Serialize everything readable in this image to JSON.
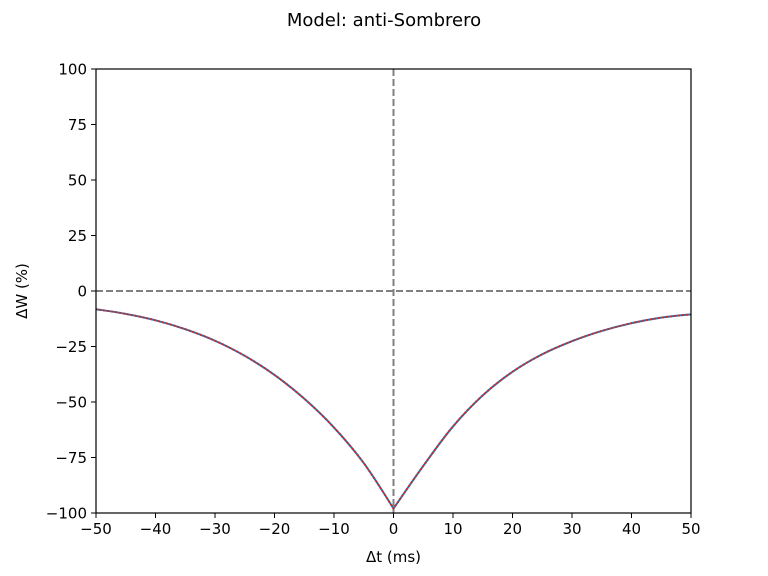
{
  "chart_data": {
    "type": "line",
    "title": "Model: anti-Sombrero",
    "xlabel": "Δt (ms)",
    "ylabel": "ΔW (%)",
    "xlim": [
      -50,
      50
    ],
    "ylim": [
      -100,
      100
    ],
    "xticks": [
      -50,
      -40,
      -30,
      -20,
      -10,
      0,
      10,
      20,
      30,
      40,
      50
    ],
    "xtick_labels": [
      "−50",
      "−40",
      "−30",
      "−20",
      "−10",
      "0",
      "10",
      "20",
      "30",
      "40",
      "50"
    ],
    "yticks": [
      -100,
      -75,
      -50,
      -25,
      0,
      25,
      50,
      75,
      100
    ],
    "ytick_labels": [
      "−100",
      "−75",
      "−50",
      "−25",
      "0",
      "25",
      "50",
      "75",
      "100"
    ],
    "grid": false,
    "reference_lines": [
      {
        "orientation": "horizontal",
        "value": 0,
        "style": "dashed",
        "color": "#808080"
      },
      {
        "orientation": "vertical",
        "value": 0,
        "style": "dashed",
        "color": "#808080"
      }
    ],
    "series": [
      {
        "style": "solid",
        "color": "#1f77b4",
        "x": [
          -50,
          -45,
          -40,
          -35,
          -30,
          -25,
          -20,
          -15,
          -10,
          -5,
          0,
          5,
          10,
          15,
          20,
          25,
          30,
          35,
          40,
          45,
          50
        ],
        "y": [
          -8.2,
          -10.3,
          -13.2,
          -17.2,
          -22.4,
          -29.2,
          -37.8,
          -48.5,
          -61.5,
          -77.5,
          -98,
          -78.8,
          -61.0,
          -47.0,
          -36.4,
          -28.5,
          -22.6,
          -18.0,
          -14.5,
          -12.0,
          -10.5
        ]
      },
      {
        "style": "dotted",
        "color": "#d62728",
        "x": [
          -50,
          -45,
          -40,
          -35,
          -30,
          -25,
          -20,
          -15,
          -10,
          -5,
          0,
          5,
          10,
          15,
          20,
          25,
          30,
          35,
          40,
          45,
          50
        ],
        "y": [
          -8.2,
          -10.3,
          -13.2,
          -17.2,
          -22.4,
          -29.2,
          -37.8,
          -48.5,
          -61.5,
          -77.5,
          -98,
          -78.8,
          -61.0,
          -47.0,
          -36.4,
          -28.5,
          -22.6,
          -18.0,
          -14.5,
          -12.0,
          -10.5
        ]
      }
    ]
  }
}
